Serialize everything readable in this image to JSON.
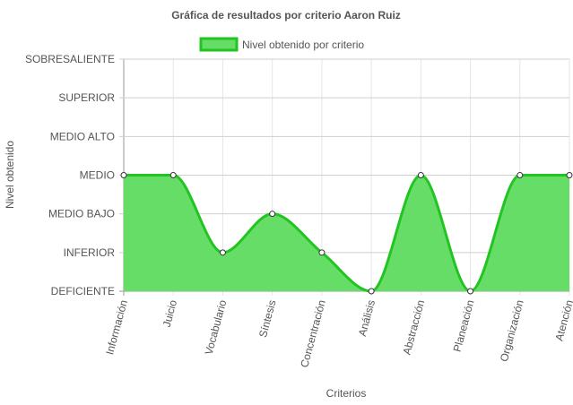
{
  "chart_data": {
    "type": "area",
    "title": "Gráfica de resultados por criterio Aaron Ruiz",
    "xlabel": "Criterios",
    "ylabel": "Nivel obtenido",
    "categories": [
      "Información",
      "Juicio",
      "Vocabulario",
      "Síntesis",
      "Concentración",
      "Análisis",
      "Abstracción",
      "Planeación",
      "Organización",
      "Atención"
    ],
    "y_levels": [
      "DEFICIENTE",
      "INFERIOR",
      "MEDIO BAJO",
      "MEDIO",
      "MEDIO ALTO",
      "SUPERIOR",
      "SOBRESALIENTE"
    ],
    "ylim": [
      0,
      6
    ],
    "grid": true,
    "legend_position": "top",
    "series": [
      {
        "name": "Nivel obtenido por criterio",
        "values": [
          3,
          3,
          1,
          2,
          1,
          0,
          3,
          0,
          3,
          3
        ],
        "fill_color": "#66dd66",
        "line_color": "#22c422"
      }
    ]
  }
}
